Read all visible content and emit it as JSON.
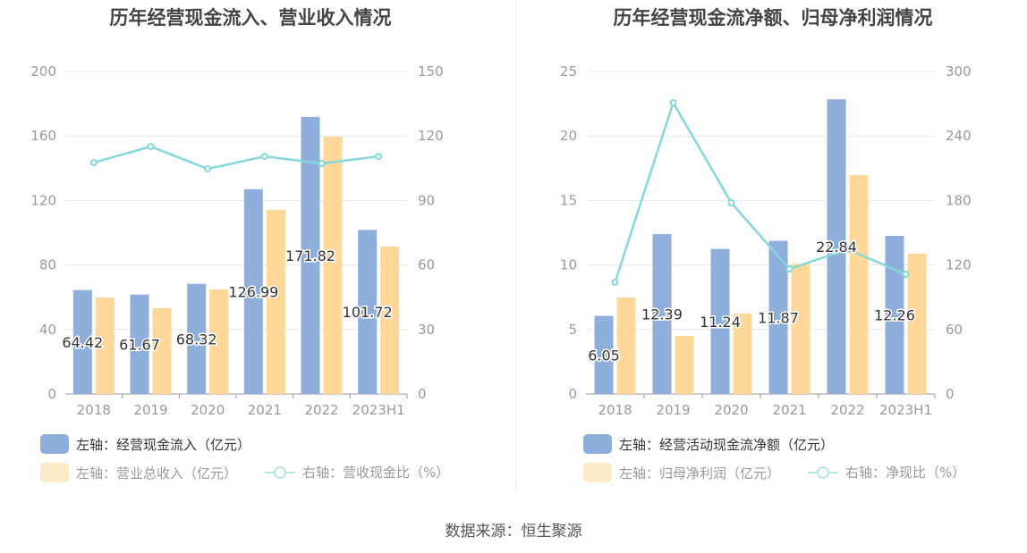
{
  "chart_data": [
    {
      "type": "bar",
      "title": "历年经营现金流入、营业收入情况",
      "categories": [
        "2018",
        "2019",
        "2020",
        "2021",
        "2022",
        "2023H1"
      ],
      "left_ylim": [
        0,
        200
      ],
      "left_ticks": [
        "0",
        "40",
        "80",
        "120",
        "160",
        "200"
      ],
      "right_ylim": [
        0,
        150
      ],
      "right_ticks": [
        "0",
        "30",
        "60",
        "90",
        "120",
        "150"
      ],
      "grid": true,
      "series": [
        {
          "name": "左轴：经营现金流入（亿元）",
          "axis": "left",
          "kind": "bar",
          "color": "#8eaedb",
          "values": [
            64.42,
            61.67,
            68.32,
            126.99,
            171.82,
            101.72
          ],
          "labels": [
            "64.42",
            "61.67",
            "68.32",
            "126.99",
            "171.82",
            "101.72"
          ]
        },
        {
          "name": "左轴：营业总收入（亿元）",
          "axis": "left",
          "kind": "bar",
          "color": "#ffd899",
          "values": [
            59.8,
            53.2,
            64.8,
            114.1,
            159.6,
            91.4
          ]
        },
        {
          "name": "右轴：营收现金比（%）",
          "axis": "right",
          "kind": "line",
          "color": "#84d8da",
          "values": [
            107.6,
            115.1,
            104.7,
            110.5,
            107.2,
            110.5
          ]
        }
      ]
    },
    {
      "type": "bar",
      "title": "历年经营现金流净额、归母净利润情况",
      "categories": [
        "2018",
        "2019",
        "2020",
        "2021",
        "2022",
        "2023H1"
      ],
      "left_ylim": [
        0,
        25
      ],
      "left_ticks": [
        "0",
        "5",
        "10",
        "15",
        "20",
        "25"
      ],
      "right_ylim": [
        0,
        300
      ],
      "right_ticks": [
        "0",
        "60",
        "120",
        "180",
        "240",
        "300"
      ],
      "grid": true,
      "series": [
        {
          "name": "左轴：经营活动现金流净额（亿元）",
          "axis": "left",
          "kind": "bar",
          "color": "#8eaedb",
          "values": [
            6.05,
            12.39,
            11.24,
            11.87,
            22.84,
            12.26
          ],
          "labels": [
            "6.05",
            "12.39",
            "11.24",
            "11.87",
            "22.84",
            "12.26"
          ]
        },
        {
          "name": "左轴：归母净利润（亿元）",
          "axis": "left",
          "kind": "bar",
          "color": "#ffd899",
          "values": [
            7.48,
            4.5,
            6.23,
            10.1,
            16.97,
            10.87
          ]
        },
        {
          "name": "右轴：净现比（%）",
          "axis": "right",
          "kind": "line",
          "color": "#84d8da",
          "values": [
            103.9,
            270.9,
            177.8,
            116.3,
            134.6,
            111.4
          ]
        }
      ]
    }
  ],
  "source": "数据来源：恒生聚源"
}
